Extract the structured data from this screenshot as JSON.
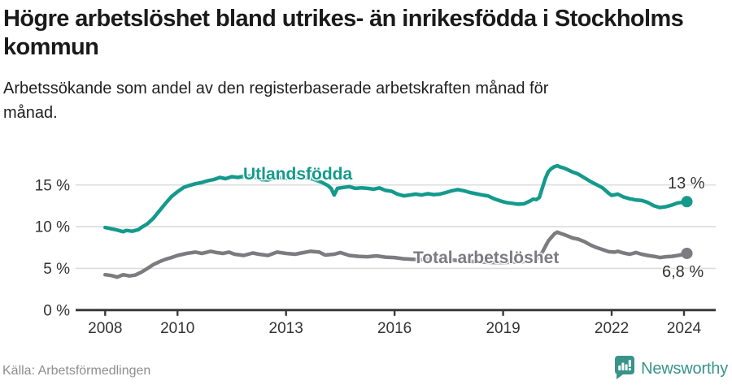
{
  "header": {
    "title": "Högre arbetslöshet bland utrikes- än inrikesfödda i Stockholms kommun",
    "subtitle": "Arbetssökande som andel av den registerbaserade arbetskraften månad för månad."
  },
  "footer": {
    "source": "Källa: Arbetsförmedlingen",
    "brand": "Newsworthy"
  },
  "colors": {
    "teal": "#149a8c",
    "gray": "#7b7b80",
    "grid": "#dcdcdc",
    "axis": "#3a3a3a",
    "tick_text": "#333333",
    "brand_teal": "#38948b"
  },
  "chart_data": {
    "type": "line",
    "title": "Högre arbetslöshet bland utrikes- än inrikesfödda i Stockholms kommun",
    "subtitle": "Arbetssökande som andel av den registerbaserade arbetskraften månad för månad.",
    "unit": "%",
    "grid": true,
    "legend_position": "inline",
    "xlim": [
      2007.2,
      2024.9
    ],
    "ylim": [
      0,
      17.5
    ],
    "x_ticks": [
      {
        "year": 2008,
        "label": "2008"
      },
      {
        "year": 2010,
        "label": "2010"
      },
      {
        "year": 2013,
        "label": "2013"
      },
      {
        "year": 2016,
        "label": "2016"
      },
      {
        "year": 2019,
        "label": "2019"
      },
      {
        "year": 2022,
        "label": "2022"
      },
      {
        "year": 2024,
        "label": "2024"
      }
    ],
    "y_ticks": [
      {
        "value": 0,
        "label": "0 %"
      },
      {
        "value": 5,
        "label": "5 %"
      },
      {
        "value": 10,
        "label": "10 %"
      },
      {
        "value": 15,
        "label": "15 %"
      }
    ],
    "series": [
      {
        "name": "Utlandsfödda",
        "color": "#149a8c",
        "end_label": "13 %",
        "end_value": 13.0,
        "points": [
          [
            2008.0,
            9.9
          ],
          [
            2008.17,
            9.75
          ],
          [
            2008.33,
            9.6
          ],
          [
            2008.5,
            9.4
          ],
          [
            2008.58,
            9.55
          ],
          [
            2008.75,
            9.45
          ],
          [
            2008.92,
            9.65
          ],
          [
            2009.0,
            9.9
          ],
          [
            2009.17,
            10.35
          ],
          [
            2009.33,
            11.0
          ],
          [
            2009.5,
            11.9
          ],
          [
            2009.67,
            12.8
          ],
          [
            2009.83,
            13.6
          ],
          [
            2010.0,
            14.2
          ],
          [
            2010.17,
            14.7
          ],
          [
            2010.33,
            14.95
          ],
          [
            2010.5,
            15.15
          ],
          [
            2010.67,
            15.3
          ],
          [
            2010.83,
            15.5
          ],
          [
            2011.0,
            15.65
          ],
          [
            2011.17,
            15.9
          ],
          [
            2011.33,
            15.75
          ],
          [
            2011.5,
            16.0
          ],
          [
            2011.67,
            15.9
          ],
          [
            2011.83,
            16.05
          ],
          [
            2012.0,
            16.1
          ],
          [
            2012.17,
            15.9
          ],
          [
            2012.33,
            15.65
          ],
          [
            2012.5,
            15.6
          ],
          [
            2012.67,
            15.85
          ],
          [
            2012.83,
            15.9
          ],
          [
            2013.0,
            15.8
          ],
          [
            2013.25,
            15.95
          ],
          [
            2013.5,
            15.9
          ],
          [
            2013.75,
            15.7
          ],
          [
            2014.0,
            15.3
          ],
          [
            2014.17,
            14.9
          ],
          [
            2014.25,
            14.55
          ],
          [
            2014.33,
            13.8
          ],
          [
            2014.42,
            14.6
          ],
          [
            2014.58,
            14.7
          ],
          [
            2014.75,
            14.8
          ],
          [
            2014.92,
            14.6
          ],
          [
            2015.08,
            14.65
          ],
          [
            2015.25,
            14.6
          ],
          [
            2015.42,
            14.5
          ],
          [
            2015.58,
            14.65
          ],
          [
            2015.75,
            14.35
          ],
          [
            2015.92,
            14.25
          ],
          [
            2016.08,
            13.9
          ],
          [
            2016.25,
            13.7
          ],
          [
            2016.42,
            13.8
          ],
          [
            2016.58,
            13.9
          ],
          [
            2016.75,
            13.8
          ],
          [
            2016.92,
            13.95
          ],
          [
            2017.08,
            13.85
          ],
          [
            2017.25,
            13.9
          ],
          [
            2017.42,
            14.1
          ],
          [
            2017.58,
            14.3
          ],
          [
            2017.75,
            14.45
          ],
          [
            2017.92,
            14.3
          ],
          [
            2018.08,
            14.1
          ],
          [
            2018.25,
            13.95
          ],
          [
            2018.42,
            13.8
          ],
          [
            2018.58,
            13.7
          ],
          [
            2018.75,
            13.35
          ],
          [
            2018.92,
            13.1
          ],
          [
            2019.08,
            12.9
          ],
          [
            2019.25,
            12.8
          ],
          [
            2019.42,
            12.7
          ],
          [
            2019.58,
            12.75
          ],
          [
            2019.75,
            13.1
          ],
          [
            2019.83,
            13.3
          ],
          [
            2019.92,
            13.25
          ],
          [
            2020.0,
            13.5
          ],
          [
            2020.08,
            14.6
          ],
          [
            2020.17,
            15.8
          ],
          [
            2020.25,
            16.6
          ],
          [
            2020.33,
            16.95
          ],
          [
            2020.42,
            17.2
          ],
          [
            2020.5,
            17.3
          ],
          [
            2020.58,
            17.15
          ],
          [
            2020.67,
            17.05
          ],
          [
            2020.75,
            16.9
          ],
          [
            2020.92,
            16.55
          ],
          [
            2021.08,
            16.3
          ],
          [
            2021.25,
            15.85
          ],
          [
            2021.42,
            15.4
          ],
          [
            2021.58,
            15.05
          ],
          [
            2021.75,
            14.65
          ],
          [
            2021.92,
            14.0
          ],
          [
            2022.0,
            13.75
          ],
          [
            2022.17,
            13.9
          ],
          [
            2022.33,
            13.55
          ],
          [
            2022.5,
            13.35
          ],
          [
            2022.67,
            13.2
          ],
          [
            2022.83,
            13.15
          ],
          [
            2023.0,
            12.9
          ],
          [
            2023.17,
            12.5
          ],
          [
            2023.33,
            12.3
          ],
          [
            2023.5,
            12.4
          ],
          [
            2023.67,
            12.6
          ],
          [
            2023.83,
            12.85
          ],
          [
            2024.0,
            12.95
          ],
          [
            2024.08,
            13.0
          ]
        ]
      },
      {
        "name": "Total arbetslöshet",
        "color": "#7b7b80",
        "end_label": "6,8 %",
        "end_value": 6.8,
        "points": [
          [
            2008.0,
            4.25
          ],
          [
            2008.17,
            4.15
          ],
          [
            2008.33,
            3.95
          ],
          [
            2008.5,
            4.25
          ],
          [
            2008.67,
            4.1
          ],
          [
            2008.83,
            4.2
          ],
          [
            2009.0,
            4.55
          ],
          [
            2009.17,
            5.0
          ],
          [
            2009.33,
            5.45
          ],
          [
            2009.5,
            5.8
          ],
          [
            2009.67,
            6.1
          ],
          [
            2009.83,
            6.3
          ],
          [
            2010.0,
            6.55
          ],
          [
            2010.25,
            6.8
          ],
          [
            2010.5,
            6.95
          ],
          [
            2010.67,
            6.8
          ],
          [
            2010.92,
            7.05
          ],
          [
            2011.08,
            6.9
          ],
          [
            2011.25,
            6.8
          ],
          [
            2011.42,
            6.95
          ],
          [
            2011.58,
            6.7
          ],
          [
            2011.83,
            6.55
          ],
          [
            2012.08,
            6.85
          ],
          [
            2012.25,
            6.7
          ],
          [
            2012.5,
            6.55
          ],
          [
            2012.75,
            6.95
          ],
          [
            2013.0,
            6.8
          ],
          [
            2013.25,
            6.7
          ],
          [
            2013.42,
            6.85
          ],
          [
            2013.67,
            7.05
          ],
          [
            2013.92,
            6.95
          ],
          [
            2014.08,
            6.6
          ],
          [
            2014.33,
            6.7
          ],
          [
            2014.5,
            6.9
          ],
          [
            2014.75,
            6.55
          ],
          [
            2015.0,
            6.45
          ],
          [
            2015.25,
            6.4
          ],
          [
            2015.5,
            6.5
          ],
          [
            2015.75,
            6.35
          ],
          [
            2016.0,
            6.3
          ],
          [
            2016.25,
            6.15
          ],
          [
            2016.5,
            6.1
          ],
          [
            2016.75,
            6.05
          ],
          [
            2017.0,
            6.1
          ],
          [
            2017.25,
            6.0
          ],
          [
            2017.5,
            6.05
          ],
          [
            2017.75,
            5.95
          ],
          [
            2018.0,
            5.9
          ],
          [
            2018.25,
            5.8
          ],
          [
            2018.5,
            5.75
          ],
          [
            2018.75,
            5.7
          ],
          [
            2019.0,
            5.7
          ],
          [
            2019.25,
            5.75
          ],
          [
            2019.5,
            5.8
          ],
          [
            2019.75,
            5.9
          ],
          [
            2019.92,
            6.05
          ],
          [
            2020.08,
            6.9
          ],
          [
            2020.25,
            8.3
          ],
          [
            2020.42,
            9.15
          ],
          [
            2020.5,
            9.35
          ],
          [
            2020.58,
            9.2
          ],
          [
            2020.75,
            8.95
          ],
          [
            2020.92,
            8.65
          ],
          [
            2021.08,
            8.5
          ],
          [
            2021.25,
            8.2
          ],
          [
            2021.42,
            7.8
          ],
          [
            2021.58,
            7.5
          ],
          [
            2021.75,
            7.25
          ],
          [
            2021.92,
            7.0
          ],
          [
            2022.08,
            6.95
          ],
          [
            2022.17,
            7.05
          ],
          [
            2022.33,
            6.85
          ],
          [
            2022.5,
            6.7
          ],
          [
            2022.67,
            6.9
          ],
          [
            2022.83,
            6.7
          ],
          [
            2023.0,
            6.55
          ],
          [
            2023.17,
            6.45
          ],
          [
            2023.33,
            6.3
          ],
          [
            2023.5,
            6.4
          ],
          [
            2023.67,
            6.45
          ],
          [
            2023.83,
            6.55
          ],
          [
            2024.0,
            6.7
          ],
          [
            2024.08,
            6.8
          ]
        ]
      }
    ]
  }
}
